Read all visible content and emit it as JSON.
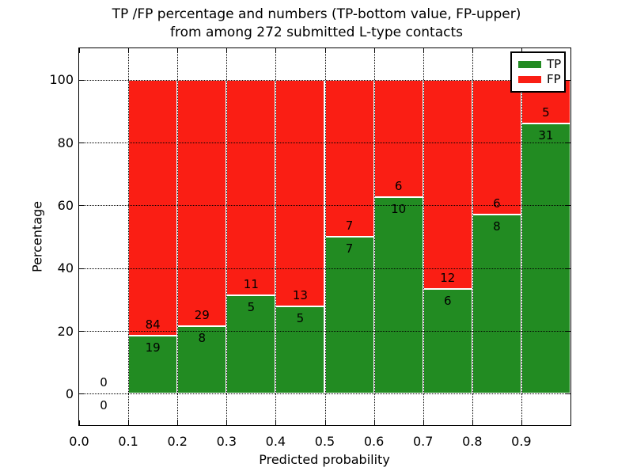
{
  "title": {
    "line1": "TP /FP percentage and numbers (TP-bottom value, FP-upper)",
    "line2": "from among 272 submitted L-type contacts"
  },
  "axes": {
    "x_label": "Predicted probability",
    "y_label": "Percentage",
    "x_tick_labels": [
      "0.0",
      "0.1",
      "0.2",
      "0.3",
      "0.4",
      "0.5",
      "0.6",
      "0.7",
      "0.8",
      "0.9"
    ],
    "x_tick_values": [
      0.0,
      0.1,
      0.2,
      0.3,
      0.4,
      0.5,
      0.6,
      0.7,
      0.8,
      0.9
    ],
    "y_tick_labels": [
      "0",
      "20",
      "40",
      "60",
      "80",
      "100"
    ],
    "y_tick_values": [
      0,
      20,
      40,
      60,
      80,
      100
    ],
    "xlim": [
      0.0,
      1.0
    ],
    "ylim": [
      -10,
      110
    ],
    "grid": "dotted"
  },
  "legend": {
    "position": "upper-right",
    "items": [
      {
        "label": "TP",
        "color": "#228b22"
      },
      {
        "label": "FP",
        "color": "#fa1e14"
      }
    ]
  },
  "chart_data": {
    "type": "bar",
    "stacked": true,
    "normalized": "each bin stacks to 100%",
    "title": "TP /FP percentage and numbers (TP-bottom value, FP-upper) from among 272 submitted L-type contacts",
    "xlabel": "Predicted probability",
    "ylabel": "Percentage",
    "xlim": [
      0.0,
      1.0
    ],
    "ylim": [
      -10,
      110
    ],
    "total_contacts": 272,
    "bin_width": 0.1,
    "colors": {
      "tp": "#228b22",
      "fp": "#fa1e14",
      "bar_edge": "#ffffff"
    },
    "bins": [
      {
        "x_start": 0.0,
        "x_end": 0.1,
        "tp_count": 0,
        "fp_count": 0,
        "tp_pct": 0.0,
        "fp_pct": 0.0
      },
      {
        "x_start": 0.1,
        "x_end": 0.2,
        "tp_count": 19,
        "fp_count": 84,
        "tp_pct": 18.45,
        "fp_pct": 81.55
      },
      {
        "x_start": 0.2,
        "x_end": 0.3,
        "tp_count": 8,
        "fp_count": 29,
        "tp_pct": 21.62,
        "fp_pct": 78.38
      },
      {
        "x_start": 0.3,
        "x_end": 0.4,
        "tp_count": 5,
        "fp_count": 11,
        "tp_pct": 31.25,
        "fp_pct": 68.75
      },
      {
        "x_start": 0.4,
        "x_end": 0.5,
        "tp_count": 5,
        "fp_count": 13,
        "tp_pct": 27.78,
        "fp_pct": 72.22
      },
      {
        "x_start": 0.5,
        "x_end": 0.6,
        "tp_count": 7,
        "fp_count": 7,
        "tp_pct": 50.0,
        "fp_pct": 50.0
      },
      {
        "x_start": 0.6,
        "x_end": 0.7,
        "tp_count": 10,
        "fp_count": 6,
        "tp_pct": 62.5,
        "fp_pct": 37.5
      },
      {
        "x_start": 0.7,
        "x_end": 0.8,
        "tp_count": 6,
        "fp_count": 12,
        "tp_pct": 33.33,
        "fp_pct": 66.67
      },
      {
        "x_start": 0.8,
        "x_end": 0.9,
        "tp_count": 8,
        "fp_count": 6,
        "tp_pct": 57.14,
        "fp_pct": 42.86
      },
      {
        "x_start": 0.9,
        "x_end": 1.0,
        "tp_count": 31,
        "fp_count": 5,
        "tp_pct": 86.11,
        "fp_pct": 13.89
      }
    ]
  }
}
